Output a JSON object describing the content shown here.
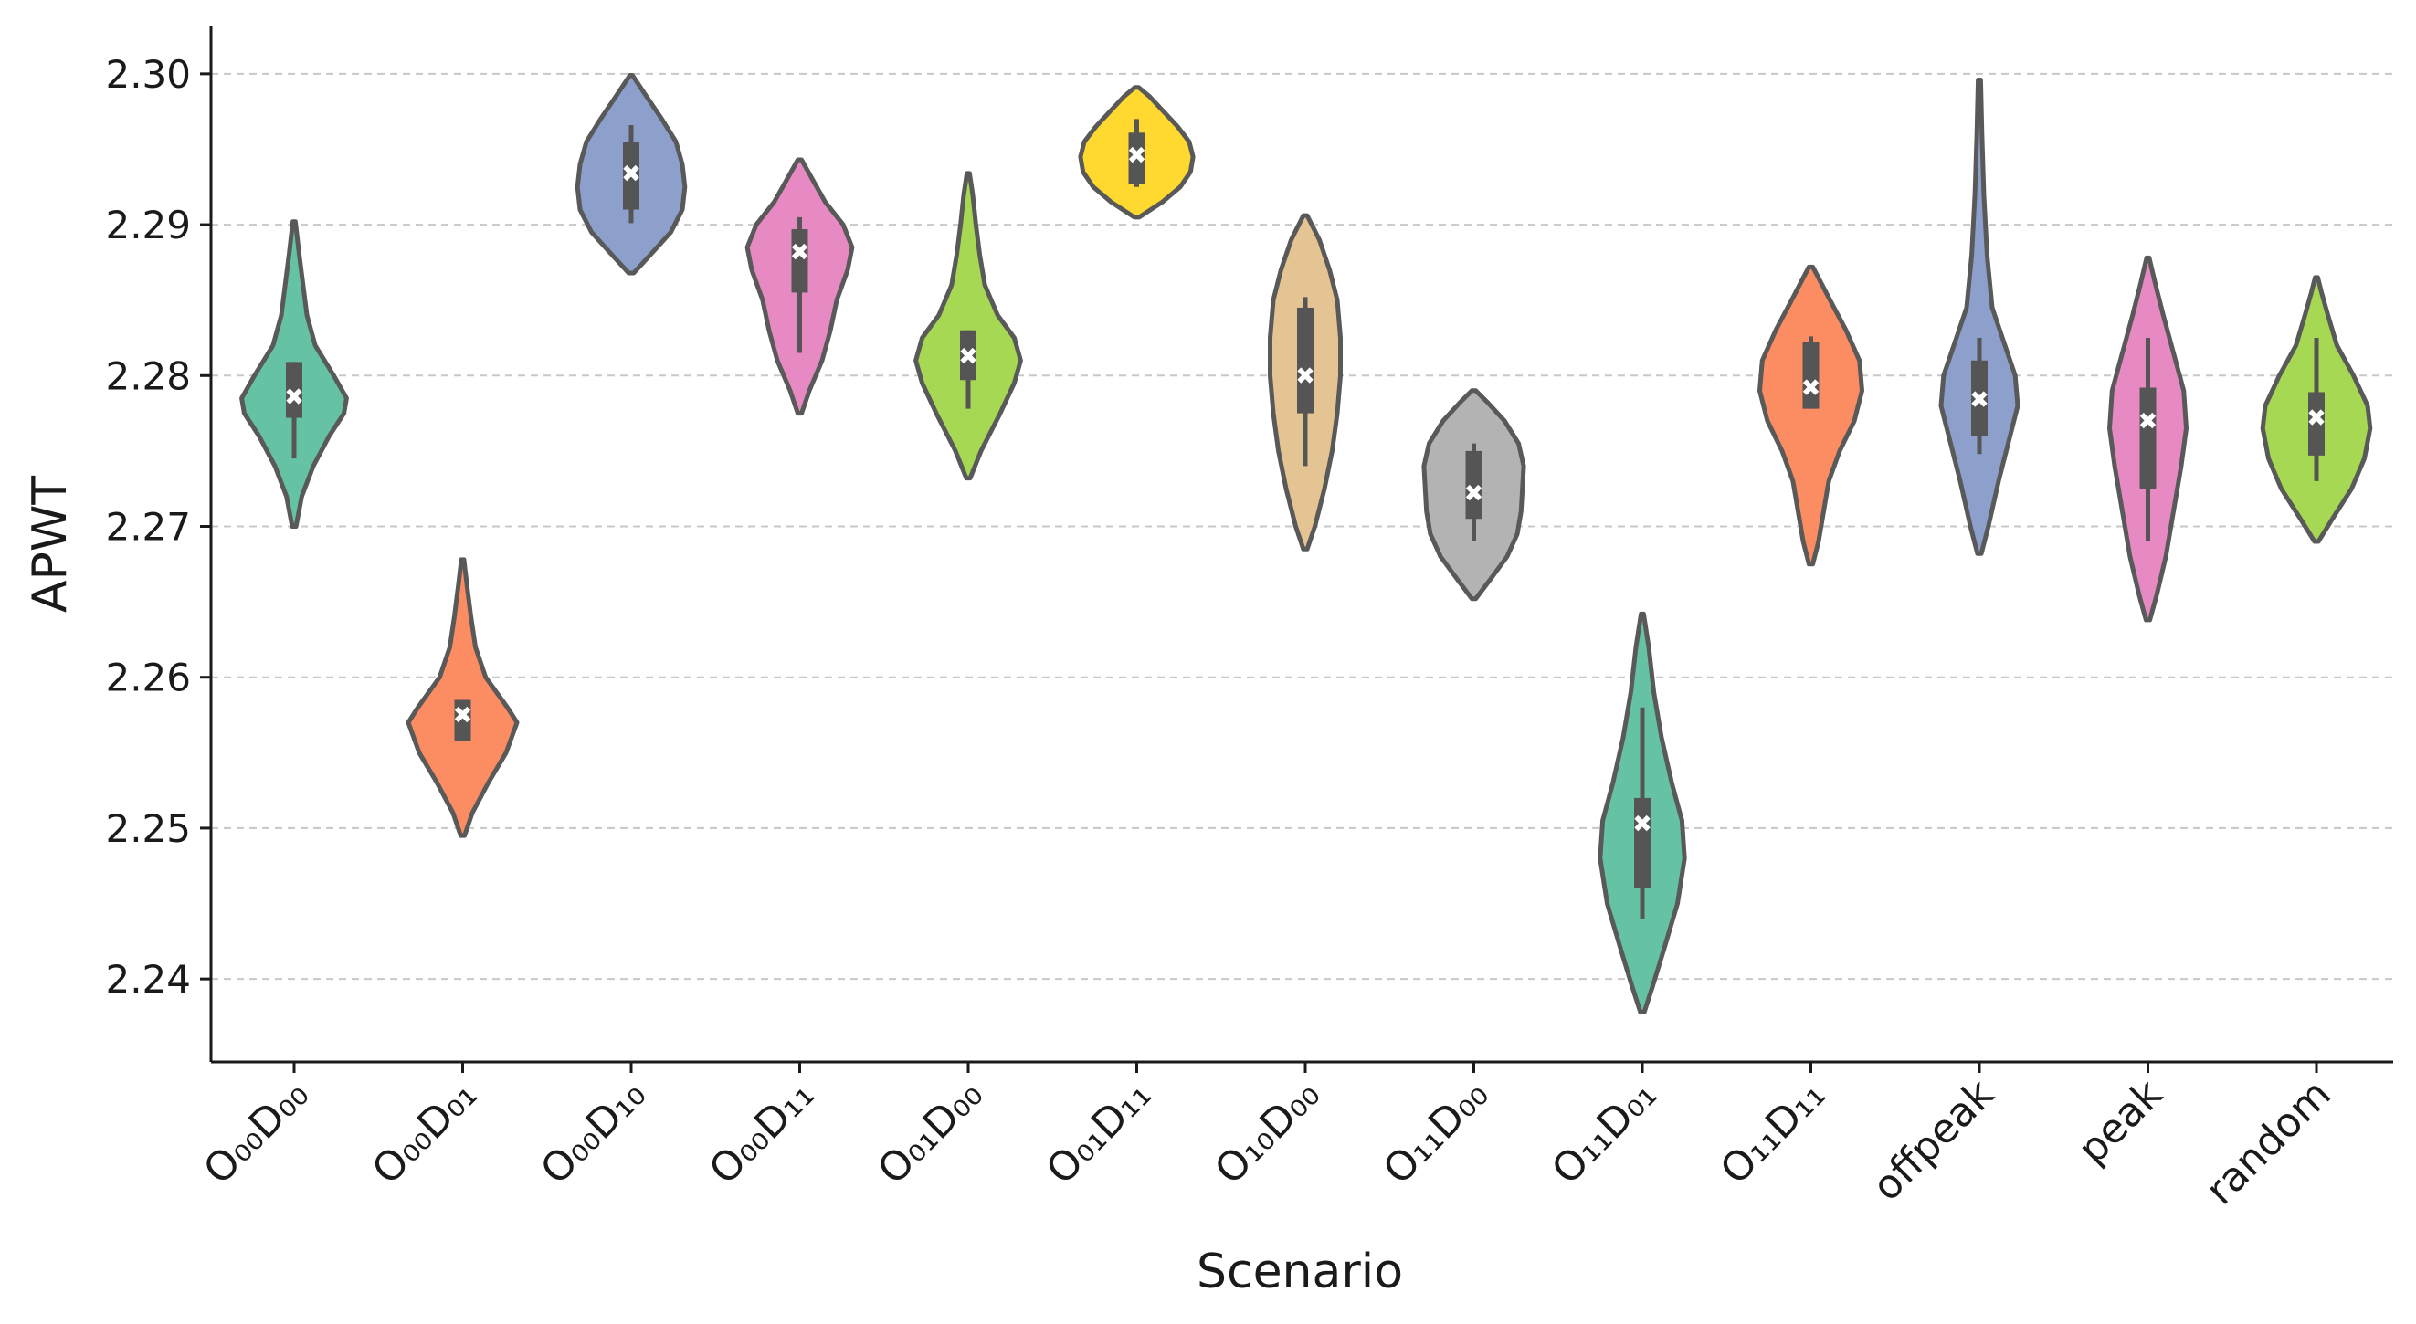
{
  "chart_data": {
    "type": "violin",
    "title": "",
    "xlabel": "Scenario",
    "ylabel": "APWT",
    "ylim": [
      2.2345,
      2.3032
    ],
    "yticks": [
      "2.24",
      "2.25",
      "2.26",
      "2.27",
      "2.28",
      "2.29",
      "2.30"
    ],
    "categories": [
      "O₀₀D₀₀",
      "O₀₀D₀₁",
      "O₀₀D₁₀",
      "O₀₀D₁₁",
      "O₀₁D₀₀",
      "O₀₁D₁₁",
      "O₁₀D₀₀",
      "O₁₁D₀₀",
      "O₁₁D₀₁",
      "O₁₁D₁₁",
      "offpeak",
      "peak",
      "random"
    ],
    "series": [
      {
        "name": "O₀₀D₀₀",
        "color": "#66c2a5",
        "min": 2.27,
        "max": 2.2902,
        "q1": 2.2772,
        "q3": 2.2809,
        "whisker_low": 2.2745,
        "whisker_high": 2.2809,
        "mean": 2.2786,
        "density": [
          [
            2.27,
            0.03
          ],
          [
            2.272,
            0.12
          ],
          [
            2.274,
            0.3
          ],
          [
            2.276,
            0.55
          ],
          [
            2.2775,
            0.78
          ],
          [
            2.2785,
            0.82
          ],
          [
            2.28,
            0.62
          ],
          [
            2.282,
            0.33
          ],
          [
            2.284,
            0.2
          ],
          [
            2.286,
            0.14
          ],
          [
            2.288,
            0.08
          ],
          [
            2.2902,
            0.02
          ]
        ]
      },
      {
        "name": "O₀₀D₀₁",
        "color": "#fc8d62",
        "min": 2.2495,
        "max": 2.2678,
        "q1": 2.2558,
        "q3": 2.2585,
        "whisker_low": 2.2558,
        "whisker_high": 2.2585,
        "mean": 2.2575,
        "density": [
          [
            2.2495,
            0.03
          ],
          [
            2.251,
            0.15
          ],
          [
            2.253,
            0.4
          ],
          [
            2.255,
            0.68
          ],
          [
            2.257,
            0.85
          ],
          [
            2.258,
            0.7
          ],
          [
            2.26,
            0.36
          ],
          [
            2.262,
            0.2
          ],
          [
            2.264,
            0.13
          ],
          [
            2.266,
            0.07
          ],
          [
            2.2678,
            0.02
          ]
        ]
      },
      {
        "name": "O₀₀D₁₀",
        "color": "#8da0cb",
        "min": 2.2868,
        "max": 2.2999,
        "q1": 2.291,
        "q3": 2.2955,
        "whisker_low": 2.2901,
        "whisker_high": 2.2966,
        "mean": 2.2934,
        "density": [
          [
            2.2868,
            0.04
          ],
          [
            2.288,
            0.3
          ],
          [
            2.2895,
            0.62
          ],
          [
            2.291,
            0.8
          ],
          [
            2.2925,
            0.84
          ],
          [
            2.294,
            0.8
          ],
          [
            2.2955,
            0.7
          ],
          [
            2.297,
            0.48
          ],
          [
            2.2985,
            0.24
          ],
          [
            2.2999,
            0.02
          ]
        ]
      },
      {
        "name": "O₀₀D₁₁",
        "color": "#e78ac3",
        "min": 2.2775,
        "max": 2.2943,
        "q1": 2.2855,
        "q3": 2.2897,
        "whisker_low": 2.2815,
        "whisker_high": 2.2905,
        "mean": 2.2882,
        "density": [
          [
            2.2775,
            0.03
          ],
          [
            2.279,
            0.15
          ],
          [
            2.281,
            0.35
          ],
          [
            2.283,
            0.48
          ],
          [
            2.285,
            0.58
          ],
          [
            2.287,
            0.75
          ],
          [
            2.2885,
            0.82
          ],
          [
            2.29,
            0.68
          ],
          [
            2.2915,
            0.4
          ],
          [
            2.293,
            0.2
          ],
          [
            2.2943,
            0.03
          ]
        ]
      },
      {
        "name": "O₀₁D₀₀",
        "color": "#a6d854",
        "min": 2.2732,
        "max": 2.2934,
        "q1": 2.2797,
        "q3": 2.283,
        "whisker_low": 2.2778,
        "whisker_high": 2.283,
        "mean": 2.2813,
        "density": [
          [
            2.2732,
            0.03
          ],
          [
            2.275,
            0.2
          ],
          [
            2.2775,
            0.5
          ],
          [
            2.2795,
            0.72
          ],
          [
            2.281,
            0.82
          ],
          [
            2.2825,
            0.72
          ],
          [
            2.284,
            0.46
          ],
          [
            2.286,
            0.26
          ],
          [
            2.288,
            0.18
          ],
          [
            2.29,
            0.12
          ],
          [
            2.292,
            0.07
          ],
          [
            2.2934,
            0.02
          ]
        ]
      },
      {
        "name": "O₀₁D₁₁",
        "color": "#ffd92f",
        "min": 2.2905,
        "max": 2.2991,
        "q1": 2.2927,
        "q3": 2.2961,
        "whisker_low": 2.2925,
        "whisker_high": 2.297,
        "mean": 2.2946,
        "density": [
          [
            2.2905,
            0.04
          ],
          [
            2.2915,
            0.4
          ],
          [
            2.2925,
            0.68
          ],
          [
            2.2935,
            0.84
          ],
          [
            2.2945,
            0.88
          ],
          [
            2.2955,
            0.82
          ],
          [
            2.2965,
            0.64
          ],
          [
            2.2975,
            0.42
          ],
          [
            2.2985,
            0.2
          ],
          [
            2.2991,
            0.03
          ]
        ]
      },
      {
        "name": "O₁₀D₀₀",
        "color": "#e5c494",
        "min": 2.2685,
        "max": 2.2906,
        "q1": 2.2775,
        "q3": 2.2845,
        "whisker_low": 2.274,
        "whisker_high": 2.2852,
        "mean": 2.28,
        "density": [
          [
            2.2685,
            0.03
          ],
          [
            2.27,
            0.15
          ],
          [
            2.2725,
            0.3
          ],
          [
            2.275,
            0.42
          ],
          [
            2.2775,
            0.5
          ],
          [
            2.28,
            0.55
          ],
          [
            2.2825,
            0.55
          ],
          [
            2.285,
            0.5
          ],
          [
            2.287,
            0.38
          ],
          [
            2.289,
            0.22
          ],
          [
            2.2906,
            0.03
          ]
        ]
      },
      {
        "name": "O₁₁D₀₀",
        "color": "#b3b3b3",
        "min": 2.2652,
        "max": 2.279,
        "q1": 2.2705,
        "q3": 2.275,
        "whisker_low": 2.269,
        "whisker_high": 2.2755,
        "mean": 2.2722,
        "density": [
          [
            2.2652,
            0.03
          ],
          [
            2.2665,
            0.26
          ],
          [
            2.268,
            0.52
          ],
          [
            2.2695,
            0.68
          ],
          [
            2.271,
            0.74
          ],
          [
            2.2725,
            0.76
          ],
          [
            2.274,
            0.78
          ],
          [
            2.2755,
            0.7
          ],
          [
            2.277,
            0.48
          ],
          [
            2.2782,
            0.22
          ],
          [
            2.279,
            0.03
          ]
        ]
      },
      {
        "name": "O₁₁D₀₁",
        "color": "#66c2a5",
        "min": 2.2378,
        "max": 2.2642,
        "q1": 2.246,
        "q3": 2.252,
        "whisker_low": 2.244,
        "whisker_high": 2.258,
        "mean": 2.2503,
        "density": [
          [
            2.2378,
            0.03
          ],
          [
            2.2395,
            0.16
          ],
          [
            2.242,
            0.34
          ],
          [
            2.245,
            0.55
          ],
          [
            2.248,
            0.66
          ],
          [
            2.2505,
            0.62
          ],
          [
            2.253,
            0.46
          ],
          [
            2.256,
            0.3
          ],
          [
            2.259,
            0.18
          ],
          [
            2.262,
            0.1
          ],
          [
            2.2642,
            0.02
          ]
        ]
      },
      {
        "name": "O₁₁D₁₁",
        "color": "#fc8d62",
        "min": 2.2675,
        "max": 2.2872,
        "q1": 2.2778,
        "q3": 2.2822,
        "whisker_low": 2.2778,
        "whisker_high": 2.2826,
        "mean": 2.2792,
        "density": [
          [
            2.2675,
            0.03
          ],
          [
            2.269,
            0.12
          ],
          [
            2.271,
            0.2
          ],
          [
            2.273,
            0.28
          ],
          [
            2.275,
            0.45
          ],
          [
            2.277,
            0.68
          ],
          [
            2.279,
            0.8
          ],
          [
            2.281,
            0.76
          ],
          [
            2.283,
            0.55
          ],
          [
            2.285,
            0.3
          ],
          [
            2.2872,
            0.03
          ]
        ]
      },
      {
        "name": "offpeak",
        "color": "#8da0cb",
        "min": 2.2682,
        "max": 2.2996,
        "q1": 2.276,
        "q3": 2.281,
        "whisker_low": 2.2748,
        "whisker_high": 2.2825,
        "mean": 2.2784,
        "density": [
          [
            2.2682,
            0.03
          ],
          [
            2.27,
            0.14
          ],
          [
            2.273,
            0.3
          ],
          [
            2.276,
            0.48
          ],
          [
            2.278,
            0.6
          ],
          [
            2.28,
            0.56
          ],
          [
            2.282,
            0.4
          ],
          [
            2.2845,
            0.2
          ],
          [
            2.288,
            0.12
          ],
          [
            2.292,
            0.07
          ],
          [
            2.296,
            0.04
          ],
          [
            2.2996,
            0.02
          ]
        ]
      },
      {
        "name": "peak",
        "color": "#e78ac3",
        "min": 2.2638,
        "max": 2.2878,
        "q1": 2.2725,
        "q3": 2.2792,
        "whisker_low": 2.269,
        "whisker_high": 2.2825,
        "mean": 2.277,
        "density": [
          [
            2.2638,
            0.03
          ],
          [
            2.2655,
            0.14
          ],
          [
            2.268,
            0.28
          ],
          [
            2.271,
            0.4
          ],
          [
            2.274,
            0.52
          ],
          [
            2.2765,
            0.6
          ],
          [
            2.279,
            0.56
          ],
          [
            2.2815,
            0.4
          ],
          [
            2.284,
            0.24
          ],
          [
            2.286,
            0.12
          ],
          [
            2.2878,
            0.02
          ]
        ]
      },
      {
        "name": "random",
        "color": "#a6d854",
        "min": 2.269,
        "max": 2.2865,
        "q1": 2.2747,
        "q3": 2.2789,
        "whisker_low": 2.273,
        "whisker_high": 2.2825,
        "mean": 2.2772,
        "density": [
          [
            2.269,
            0.03
          ],
          [
            2.2705,
            0.25
          ],
          [
            2.2725,
            0.55
          ],
          [
            2.2745,
            0.75
          ],
          [
            2.2765,
            0.84
          ],
          [
            2.278,
            0.8
          ],
          [
            2.28,
            0.58
          ],
          [
            2.282,
            0.32
          ],
          [
            2.284,
            0.18
          ],
          [
            2.2855,
            0.08
          ],
          [
            2.2865,
            0.02
          ]
        ]
      }
    ]
  }
}
